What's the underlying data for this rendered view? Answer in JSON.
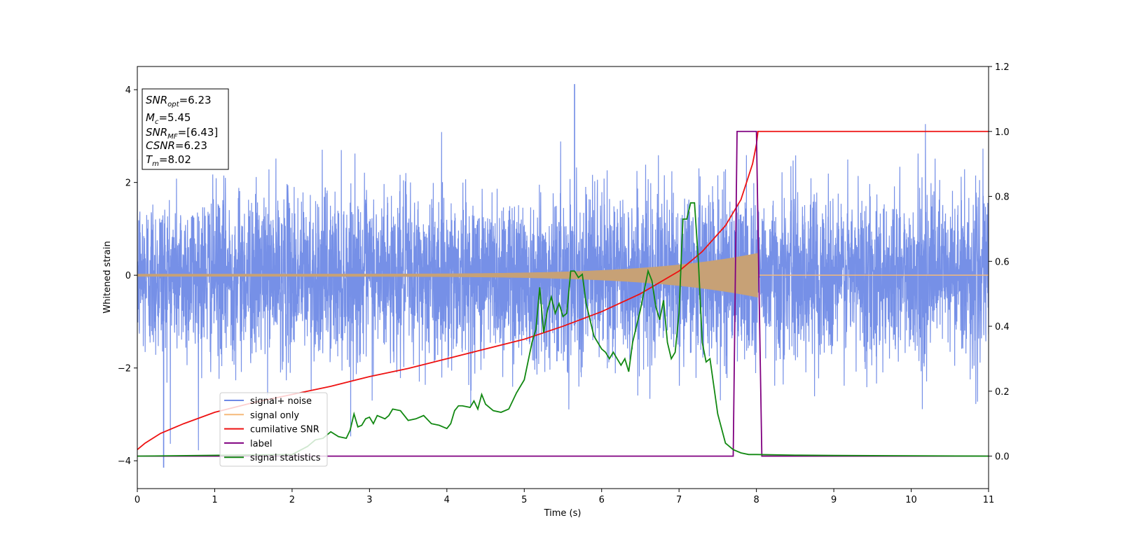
{
  "chart_data": {
    "type": "line",
    "xlabel": "Time (s)",
    "ylabel": "Whitened strain",
    "xlim": [
      0,
      11
    ],
    "ylim_left": [
      -4.6,
      4.5
    ],
    "ylim_right": [
      -0.1,
      1.2
    ],
    "x_ticks": [
      "0",
      "1",
      "2",
      "3",
      "4",
      "5",
      "6",
      "7",
      "8",
      "9",
      "10",
      "11"
    ],
    "y_ticks_left": [
      "−4",
      "−2",
      "0",
      "2",
      "4"
    ],
    "y_ticks_right": [
      "0.0",
      "0.2",
      "0.4",
      "0.6",
      "0.8",
      "1.0",
      "1.2"
    ],
    "grid": false,
    "legend_position": "lower-left",
    "info_box": {
      "snr_opt": {
        "sym": "SNR",
        "sub": "opt",
        "value": "=6.23"
      },
      "mc": {
        "sym": "M",
        "sub": "c",
        "value": "=5.45"
      },
      "snr_mf": {
        "sym": "SNR",
        "sub": "MF",
        "value": "=[6.43]"
      },
      "csnr": {
        "sym": "CSNR",
        "sub": "",
        "value": "=6.23"
      },
      "tm": {
        "sym": "T",
        "sub": "m",
        "value": "=8.02"
      }
    },
    "series": [
      {
        "name": "signal+ noise",
        "axis": "left",
        "color": "#6f8ae6",
        "description_values": {
          "std": 0.9,
          "x_range": [
            0,
            11
          ],
          "max": 4.12,
          "min": -4.15
        }
      },
      {
        "name": "signal only",
        "axis": "left",
        "color": "#f5b97a",
        "chirp": {
          "t_merge": 8.02,
          "amp_start": 0.03,
          "amp_merge": 0.48
        }
      },
      {
        "name": "cumilative SNR",
        "axis": "right",
        "color": "#ee1111",
        "x": [
          0,
          0.1,
          0.3,
          0.6,
          1.0,
          1.5,
          2.0,
          2.5,
          3.0,
          3.5,
          4.0,
          4.5,
          5.0,
          5.5,
          6.0,
          6.5,
          7.0,
          7.3,
          7.6,
          7.8,
          7.95,
          8.0,
          8.02,
          11.0
        ],
        "y": [
          0.02,
          0.04,
          0.07,
          0.1,
          0.135,
          0.165,
          0.19,
          0.215,
          0.245,
          0.27,
          0.3,
          0.33,
          0.36,
          0.4,
          0.445,
          0.5,
          0.57,
          0.63,
          0.71,
          0.79,
          0.9,
          0.96,
          1.0,
          1.0
        ]
      },
      {
        "name": "label",
        "axis": "right",
        "color": "#800080",
        "x": [
          0,
          7.7,
          7.75,
          8.0,
          8.07,
          11.0
        ],
        "y": [
          0,
          0,
          1,
          1,
          0,
          0
        ]
      },
      {
        "name": "signal statistics",
        "axis": "right",
        "color": "#118811",
        "x": [
          0,
          2.0,
          2.2,
          2.3,
          2.4,
          2.5,
          2.6,
          2.7,
          2.75,
          2.8,
          2.85,
          2.9,
          2.95,
          3.0,
          3.05,
          3.1,
          3.15,
          3.2,
          3.25,
          3.3,
          3.4,
          3.5,
          3.6,
          3.7,
          3.8,
          3.9,
          4.0,
          4.05,
          4.1,
          4.15,
          4.2,
          4.3,
          4.35,
          4.4,
          4.45,
          4.5,
          4.6,
          4.7,
          4.8,
          4.9,
          5.0,
          5.1,
          5.15,
          5.2,
          5.25,
          5.3,
          5.35,
          5.4,
          5.45,
          5.5,
          5.55,
          5.6,
          5.65,
          5.7,
          5.75,
          5.8,
          5.9,
          6.0,
          6.05,
          6.1,
          6.15,
          6.2,
          6.25,
          6.3,
          6.35,
          6.4,
          6.5,
          6.6,
          6.65,
          6.7,
          6.75,
          6.8,
          6.85,
          6.9,
          6.95,
          7.0,
          7.05,
          7.1,
          7.15,
          7.2,
          7.25,
          7.3,
          7.35,
          7.4,
          7.5,
          7.6,
          7.7,
          7.8,
          7.9,
          8.0,
          8.5,
          9.0,
          10.0,
          11.0
        ],
        "y": [
          0.0,
          0.005,
          0.03,
          0.05,
          0.055,
          0.075,
          0.06,
          0.055,
          0.08,
          0.13,
          0.09,
          0.095,
          0.115,
          0.12,
          0.1,
          0.125,
          0.12,
          0.115,
          0.125,
          0.145,
          0.14,
          0.11,
          0.115,
          0.125,
          0.1,
          0.095,
          0.085,
          0.1,
          0.14,
          0.155,
          0.155,
          0.15,
          0.17,
          0.145,
          0.19,
          0.16,
          0.14,
          0.135,
          0.145,
          0.195,
          0.235,
          0.35,
          0.39,
          0.52,
          0.38,
          0.45,
          0.49,
          0.44,
          0.47,
          0.43,
          0.44,
          0.57,
          0.57,
          0.55,
          0.56,
          0.47,
          0.37,
          0.33,
          0.32,
          0.3,
          0.32,
          0.3,
          0.28,
          0.3,
          0.26,
          0.35,
          0.45,
          0.57,
          0.54,
          0.46,
          0.42,
          0.48,
          0.35,
          0.3,
          0.32,
          0.44,
          0.73,
          0.73,
          0.78,
          0.78,
          0.6,
          0.35,
          0.29,
          0.3,
          0.13,
          0.04,
          0.02,
          0.01,
          0.005,
          0.005,
          0.003,
          0.002,
          0.001,
          0.0
        ]
      }
    ]
  }
}
